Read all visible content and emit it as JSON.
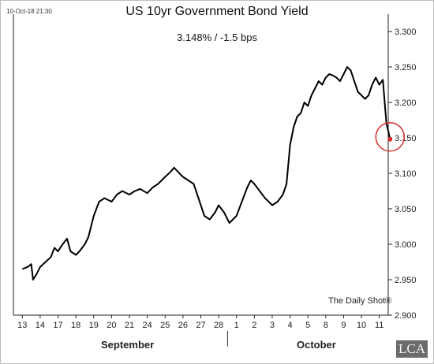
{
  "chart_data": {
    "type": "line",
    "title": "US 10yr Government Bond Yield",
    "subtitle": "3.148%  /  -1.5 bps",
    "timestamp": "10-Oct-18 21:30",
    "source": "The Daily Shot®",
    "xlabel": "",
    "ylabel": "",
    "ylim": [
      2.9,
      3.3
    ],
    "y_ticks": [
      "3.300",
      "3.250",
      "3.200",
      "3.150",
      "3.100",
      "3.050",
      "3.000",
      "2.950",
      "2.900"
    ],
    "x_ticks": [
      "13",
      "14",
      "17",
      "18",
      "19",
      "20",
      "21",
      "24",
      "25",
      "26",
      "27",
      "28",
      "1",
      "2",
      "3",
      "4",
      "5",
      "8",
      "9",
      "10",
      "11"
    ],
    "month_labels": [
      "September",
      "October"
    ],
    "grid": false,
    "highlight": {
      "x": 20.6,
      "y": 3.148,
      "color": "#d32f2f"
    },
    "series": [
      {
        "color": "#000000",
        "points": [
          [
            0.0,
            2.965
          ],
          [
            0.3,
            2.968
          ],
          [
            0.5,
            2.972
          ],
          [
            0.6,
            2.95
          ],
          [
            0.8,
            2.958
          ],
          [
            1.0,
            2.968
          ],
          [
            1.3,
            2.975
          ],
          [
            1.6,
            2.982
          ],
          [
            1.8,
            2.995
          ],
          [
            2.0,
            2.99
          ],
          [
            2.2,
            2.998
          ],
          [
            2.5,
            3.008
          ],
          [
            2.7,
            2.99
          ],
          [
            3.0,
            2.985
          ],
          [
            3.2,
            2.99
          ],
          [
            3.5,
            3.0
          ],
          [
            3.7,
            3.01
          ],
          [
            4.0,
            3.04
          ],
          [
            4.3,
            3.06
          ],
          [
            4.6,
            3.065
          ],
          [
            5.0,
            3.06
          ],
          [
            5.3,
            3.07
          ],
          [
            5.6,
            3.075
          ],
          [
            6.0,
            3.07
          ],
          [
            6.3,
            3.075
          ],
          [
            6.6,
            3.078
          ],
          [
            7.0,
            3.072
          ],
          [
            7.3,
            3.08
          ],
          [
            7.6,
            3.085
          ],
          [
            8.0,
            3.095
          ],
          [
            8.3,
            3.102
          ],
          [
            8.5,
            3.108
          ],
          [
            8.8,
            3.1
          ],
          [
            9.0,
            3.095
          ],
          [
            9.3,
            3.09
          ],
          [
            9.6,
            3.085
          ],
          [
            9.8,
            3.07
          ],
          [
            10.0,
            3.055
          ],
          [
            10.2,
            3.04
          ],
          [
            10.5,
            3.035
          ],
          [
            10.8,
            3.045
          ],
          [
            11.0,
            3.055
          ],
          [
            11.3,
            3.045
          ],
          [
            11.6,
            3.03
          ],
          [
            11.8,
            3.035
          ],
          [
            12.0,
            3.04
          ],
          [
            12.3,
            3.06
          ],
          [
            12.6,
            3.08
          ],
          [
            12.8,
            3.09
          ],
          [
            13.0,
            3.085
          ],
          [
            13.3,
            3.075
          ],
          [
            13.6,
            3.065
          ],
          [
            13.8,
            3.06
          ],
          [
            14.0,
            3.055
          ],
          [
            14.3,
            3.06
          ],
          [
            14.6,
            3.07
          ],
          [
            14.8,
            3.085
          ],
          [
            15.0,
            3.14
          ],
          [
            15.2,
            3.165
          ],
          [
            15.4,
            3.18
          ],
          [
            15.6,
            3.185
          ],
          [
            15.8,
            3.2
          ],
          [
            16.0,
            3.195
          ],
          [
            16.2,
            3.21
          ],
          [
            16.4,
            3.22
          ],
          [
            16.6,
            3.23
          ],
          [
            16.8,
            3.225
          ],
          [
            17.0,
            3.235
          ],
          [
            17.2,
            3.24
          ],
          [
            17.4,
            3.238
          ],
          [
            17.6,
            3.235
          ],
          [
            17.8,
            3.23
          ],
          [
            18.0,
            3.24
          ],
          [
            18.2,
            3.25
          ],
          [
            18.4,
            3.245
          ],
          [
            18.6,
            3.23
          ],
          [
            18.8,
            3.215
          ],
          [
            19.0,
            3.21
          ],
          [
            19.2,
            3.205
          ],
          [
            19.4,
            3.21
          ],
          [
            19.6,
            3.225
          ],
          [
            19.8,
            3.235
          ],
          [
            20.0,
            3.225
          ],
          [
            20.2,
            3.232
          ],
          [
            20.4,
            3.17
          ],
          [
            20.5,
            3.16
          ],
          [
            20.6,
            3.148
          ]
        ]
      }
    ]
  }
}
